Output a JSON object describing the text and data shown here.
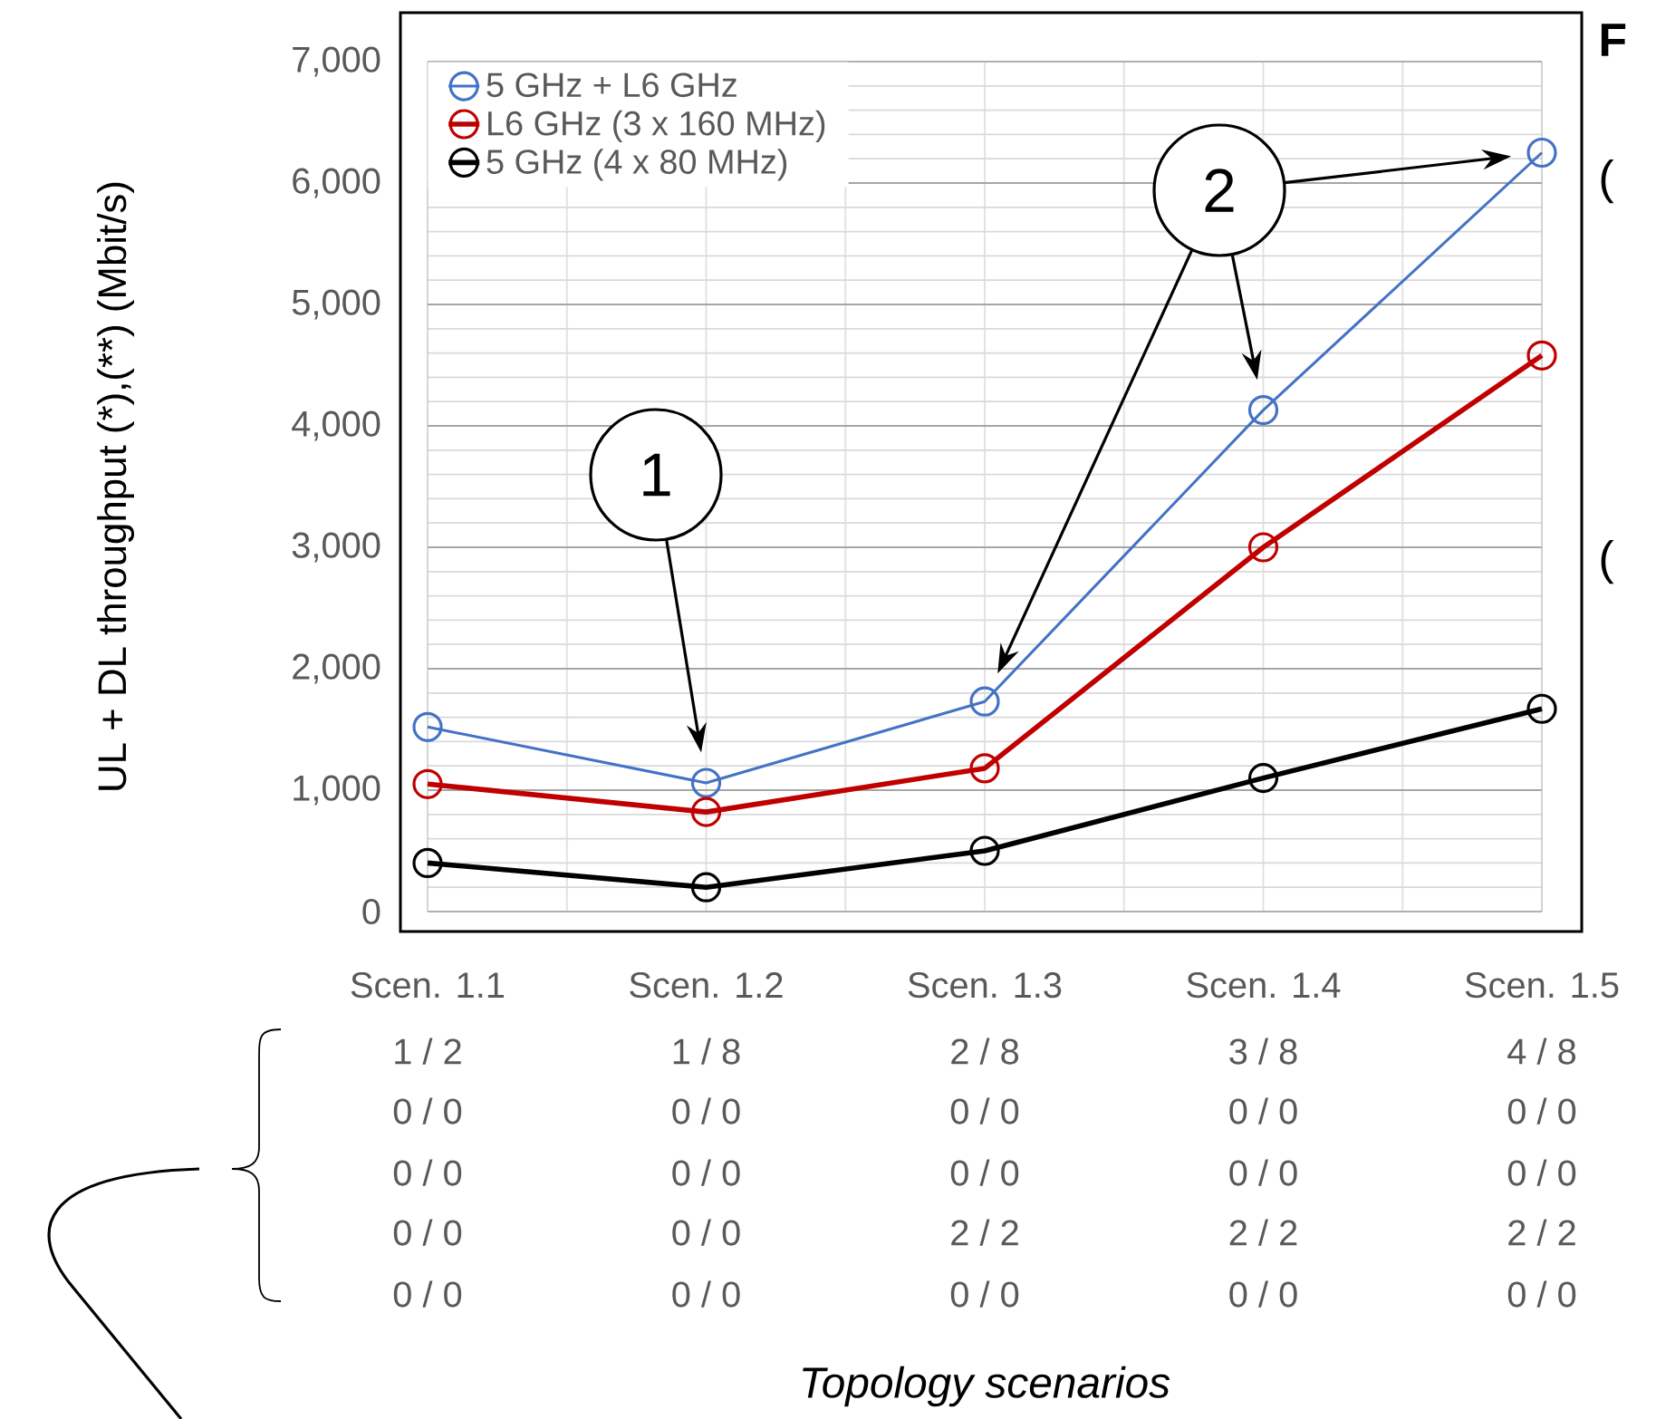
{
  "chart_data": {
    "type": "line",
    "ylabel": "UL + DL throughput (*),(**) (Mbit/s)",
    "categories": [
      "Scen. 1.1",
      "Scen. 1.2",
      "Scen. 1.3",
      "Scen. 1.4",
      "Scen. 1.5"
    ],
    "series": [
      {
        "name": "5 GHz + L6 GHz",
        "color": "#4472c4",
        "values": [
          1520,
          1060,
          1730,
          4130,
          6250
        ]
      },
      {
        "name": "L6 GHz (3 x 160 MHz)",
        "color": "#c00000",
        "values": [
          1050,
          820,
          1180,
          3000,
          4580
        ]
      },
      {
        "name": "5 GHz (4 x 80 MHz)",
        "color": "#000000",
        "values": [
          400,
          200,
          500,
          1100,
          1670
        ]
      }
    ],
    "ylim": [
      0,
      7000
    ],
    "yticks": [
      0,
      {
        "value": 1000,
        "label": "1,000"
      },
      {
        "value": 2000,
        "label": "2,000"
      },
      {
        "value": 3000,
        "label": "3,000"
      },
      {
        "value": 4000,
        "label": "4,000"
      },
      {
        "value": 5000,
        "label": "5,000"
      },
      {
        "value": 6000,
        "label": "6,000"
      },
      {
        "value": 7000,
        "label": "7,000"
      }
    ],
    "grid": true,
    "legend": "top left",
    "marker": "circle",
    "line_style": "solid",
    "annotations": [
      "1",
      "2",
      "1 / 2",
      "1 / 8",
      "2 / 8",
      "3 / 8",
      "4 / 8",
      "0 / 0",
      "0 / 0",
      "0 / 0",
      "0 / 0",
      "0 / 0",
      "0 / 0",
      "0 / 0",
      "0 / 0",
      "0 / 0",
      "0 / 0",
      "0 / 0",
      "0 / 0",
      "2 / 2",
      "2 / 2",
      "2 / 2",
      "0 / 0",
      "0 / 0",
      "0 / 0",
      "0 / 0",
      "0 / 0",
      "Topology scenarios",
      "**F**",
      "(",
      "("
    ]
  }
}
